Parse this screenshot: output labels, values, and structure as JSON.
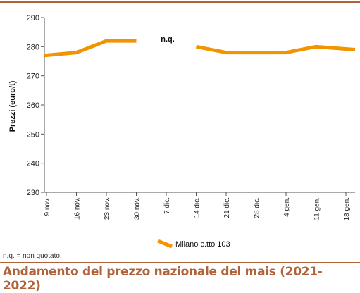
{
  "chart_data": {
    "type": "line",
    "ylabel": "Prezzi (euro/t)",
    "ylim": [
      230,
      290
    ],
    "yticks": [
      230,
      240,
      250,
      260,
      270,
      280,
      290
    ],
    "categories": [
      "9 nov.",
      "16 nov.",
      "23 nov.",
      "30 nov.",
      "7 dic.",
      "14 dic.",
      "21 dic.",
      "28 dic.",
      "4 gen.",
      "11 gen.",
      "18 gen."
    ],
    "series": [
      {
        "name": "Milano  c.tto 103",
        "values": [
          277,
          278,
          282,
          282,
          null,
          280,
          278,
          278,
          278,
          280,
          279
        ]
      }
    ],
    "annotations": [
      {
        "text": "n.q.",
        "category": "7 dic.",
        "value": 282
      }
    ],
    "grid": false,
    "legend": "bottom-center",
    "colors": {
      "series": "#f29400",
      "axis": "#555555"
    }
  },
  "footnote": "n.q. = non quotato.",
  "caption": "Andamento del prezzo nazionale del mais (2021-2022)",
  "caption_color": "#b0623a"
}
